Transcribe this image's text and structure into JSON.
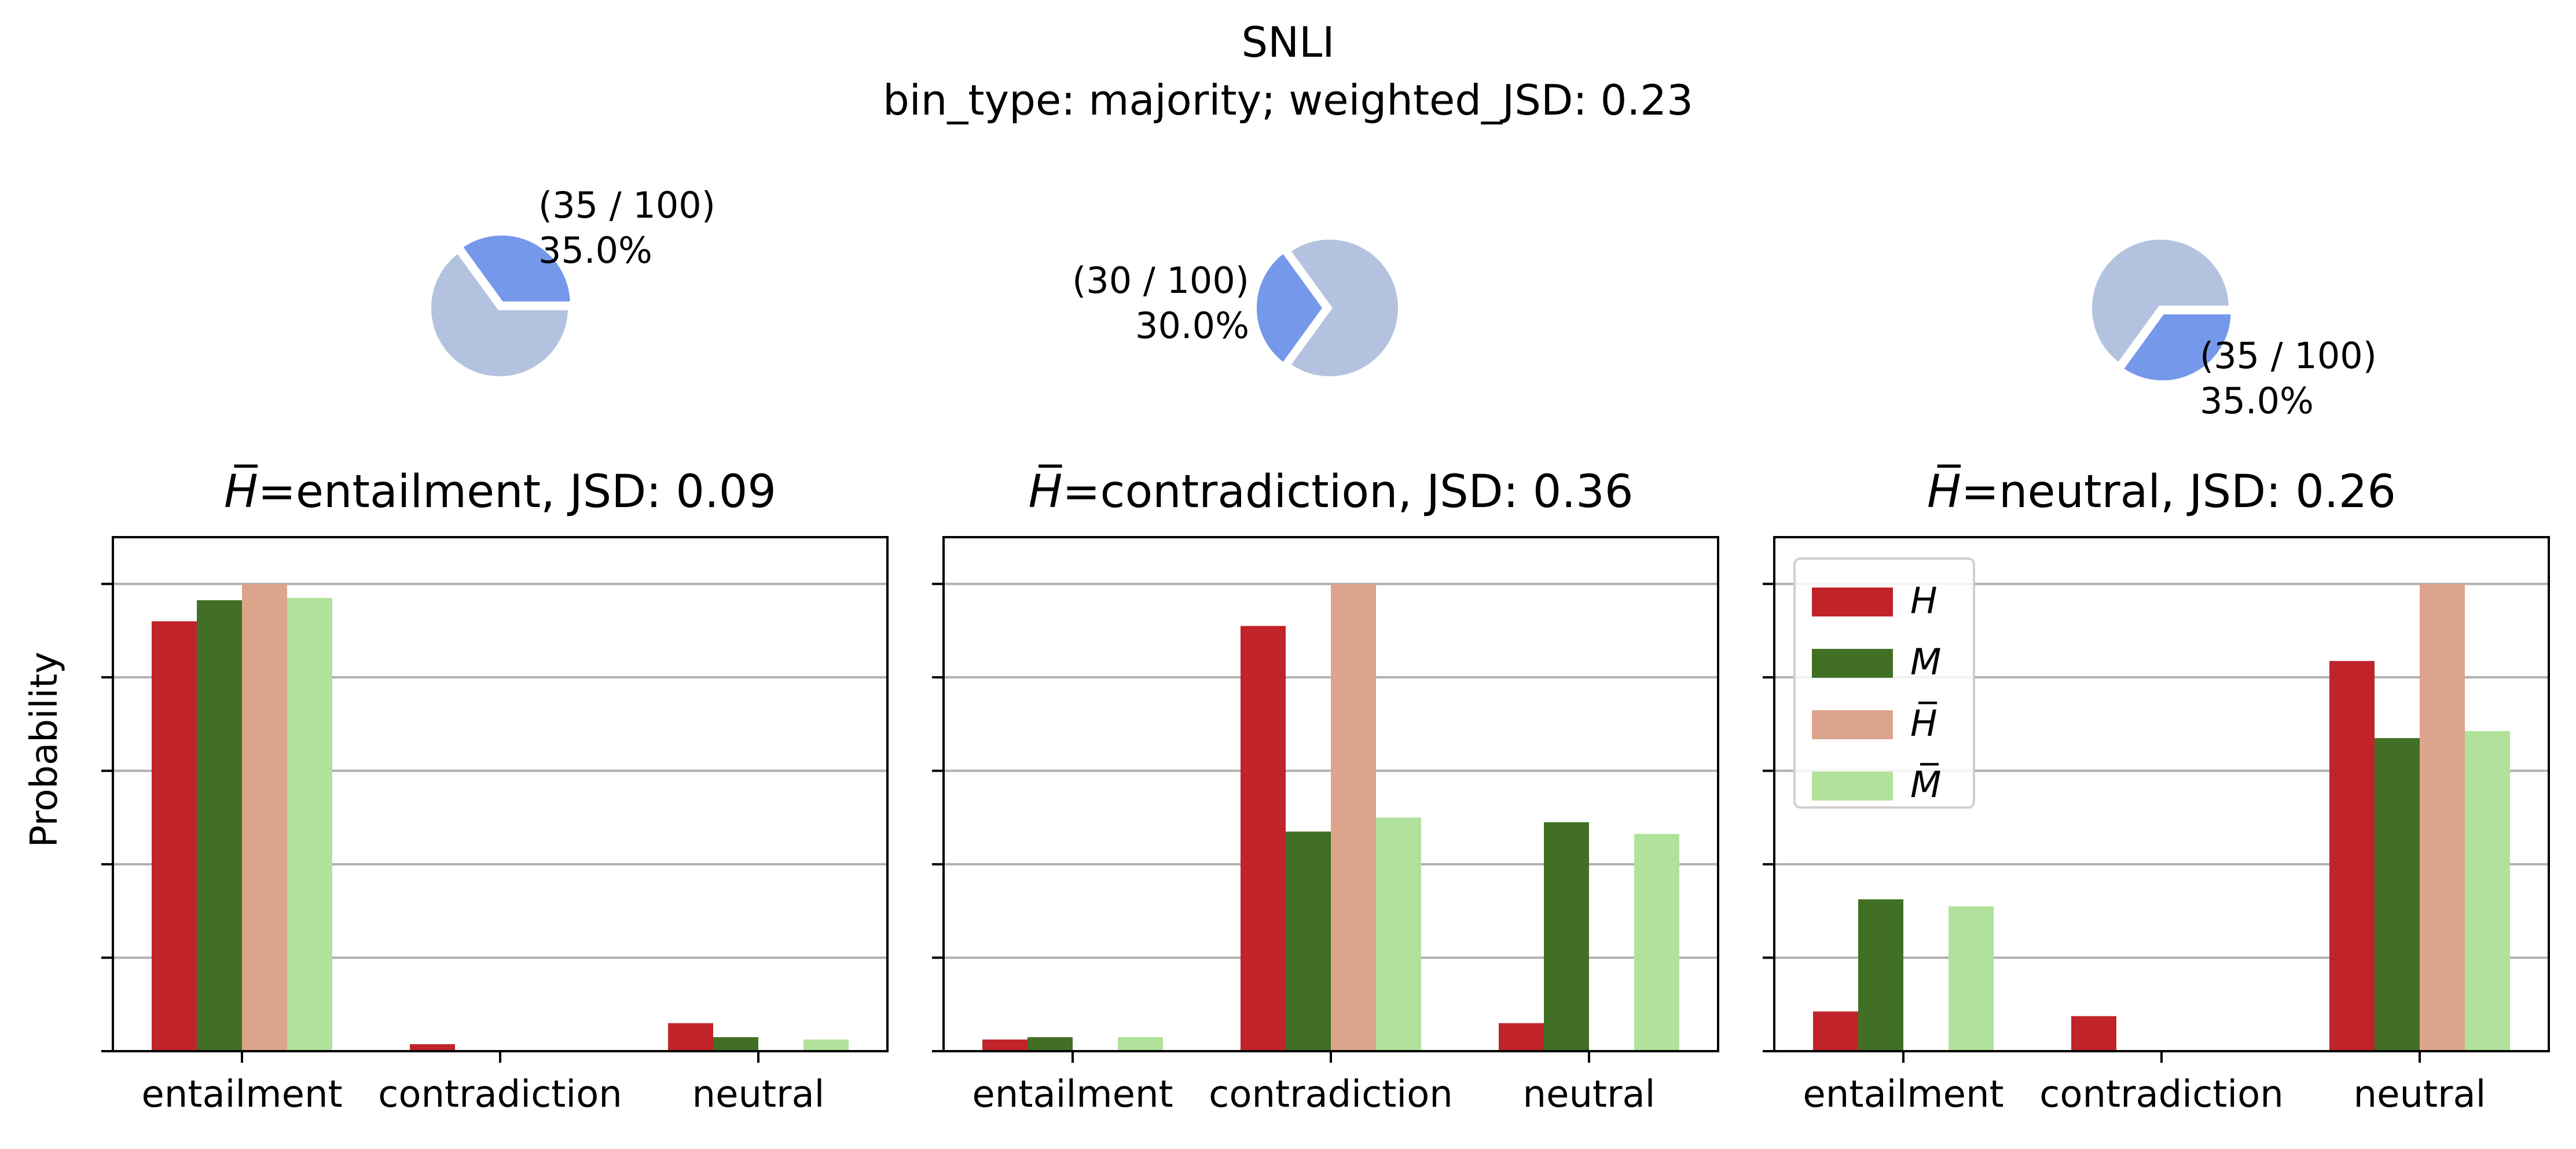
{
  "figure": {
    "title": "SNLI",
    "subtitle": "bin_type: majority; weighted_JSD: 0.23",
    "ylabel": "Probability"
  },
  "colors": {
    "H": "#c0242a",
    "M": "#417024",
    "H_bar": "#dca48a",
    "M_bar": "#b1e29b",
    "pie_highlight": "#7598ea",
    "pie_rest": "#b3c3df",
    "grid": "#b0b0b0"
  },
  "legend": {
    "entries": [
      {
        "key": "H",
        "label": "H"
      },
      {
        "key": "M",
        "label": "M"
      },
      {
        "key": "H_bar",
        "label": "H̅"
      },
      {
        "key": "M_bar",
        "label": "M̅"
      }
    ]
  },
  "chart_data": [
    {
      "type": "bar",
      "title_prefix": "H̅",
      "title": "=entailment, JSD: 0.09",
      "categories": [
        "entailment",
        "contradiction",
        "neutral"
      ],
      "ylim": [
        0,
        1.1
      ],
      "grid": true,
      "series": [
        {
          "key": "H",
          "values": [
            0.92,
            0.015,
            0.06
          ]
        },
        {
          "key": "M",
          "values": [
            0.965,
            0.0,
            0.03
          ]
        },
        {
          "key": "H_bar",
          "values": [
            1.0,
            0.0,
            0.0
          ]
        },
        {
          "key": "M_bar",
          "values": [
            0.97,
            0.0,
            0.025
          ]
        }
      ],
      "pie": {
        "label_count": "(35 / 100)",
        "label_pct": "35.0%",
        "fraction": 0.35
      }
    },
    {
      "type": "bar",
      "title_prefix": "H̅",
      "title": "=contradiction, JSD: 0.36",
      "categories": [
        "entailment",
        "contradiction",
        "neutral"
      ],
      "ylim": [
        0,
        1.1
      ],
      "grid": true,
      "series": [
        {
          "key": "H",
          "values": [
            0.025,
            0.91,
            0.06
          ]
        },
        {
          "key": "M",
          "values": [
            0.03,
            0.47,
            0.49
          ]
        },
        {
          "key": "H_bar",
          "values": [
            0.0,
            1.0,
            0.0
          ]
        },
        {
          "key": "M_bar",
          "values": [
            0.03,
            0.5,
            0.465
          ]
        }
      ],
      "pie": {
        "label_count": "(30 / 100)",
        "label_pct": "30.0%",
        "fraction": 0.3
      }
    },
    {
      "type": "bar",
      "title_prefix": "H̅",
      "title": "=neutral, JSD: 0.26",
      "categories": [
        "entailment",
        "contradiction",
        "neutral"
      ],
      "ylim": [
        0,
        1.1
      ],
      "grid": true,
      "legend_position": "upper-left",
      "series": [
        {
          "key": "H",
          "values": [
            0.085,
            0.075,
            0.835
          ]
        },
        {
          "key": "M",
          "values": [
            0.325,
            0.0,
            0.67
          ]
        },
        {
          "key": "H_bar",
          "values": [
            0.0,
            0.0,
            1.0
          ]
        },
        {
          "key": "M_bar",
          "values": [
            0.31,
            0.0,
            0.685
          ]
        }
      ],
      "pie": {
        "label_count": "(35 / 100)",
        "label_pct": "35.0%",
        "fraction": 0.35
      }
    }
  ]
}
